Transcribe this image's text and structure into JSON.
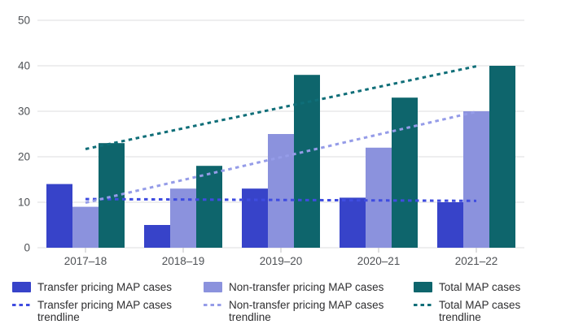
{
  "chart_data": {
    "type": "bar",
    "title": "",
    "xlabel": "",
    "ylabel": "",
    "categories": [
      "2017–18",
      "2018–19",
      "2019–20",
      "2020–21",
      "2021–22"
    ],
    "series": [
      {
        "name": "Transfer pricing MAP cases",
        "values": [
          14,
          5,
          13,
          11,
          10
        ],
        "color": "#3743c9"
      },
      {
        "name": "Non-transfer pricing MAP cases",
        "values": [
          9,
          13,
          25,
          22,
          30
        ],
        "color": "#8b92dd"
      },
      {
        "name": "Total MAP cases",
        "values": [
          23,
          18,
          38,
          33,
          40
        ],
        "color": "#0e656c"
      }
    ],
    "trendlines": [
      {
        "name": "Transfer pricing MAP cases trendline",
        "series_index": 0,
        "start_value": 10.7,
        "end_value": 10.3,
        "color": "#3f4ce0"
      },
      {
        "name": "Non-transfer pricing MAP cases trendline",
        "series_index": 1,
        "start_value": 9.9,
        "end_value": 29.9,
        "color": "#959ce8"
      },
      {
        "name": "Total MAP cases trendline",
        "series_index": 2,
        "start_value": 21.7,
        "end_value": 39.9,
        "color": "#0f6e78"
      }
    ],
    "ylim": [
      0,
      50
    ],
    "yticks": [
      0,
      10,
      20,
      30,
      40,
      50
    ],
    "grid": true,
    "legend_position": "bottom",
    "colors": {
      "background": "#ffffff",
      "gridline": "#e4e4e5",
      "tick": "#cbcbcd",
      "axis_label": "#4e5155"
    }
  }
}
